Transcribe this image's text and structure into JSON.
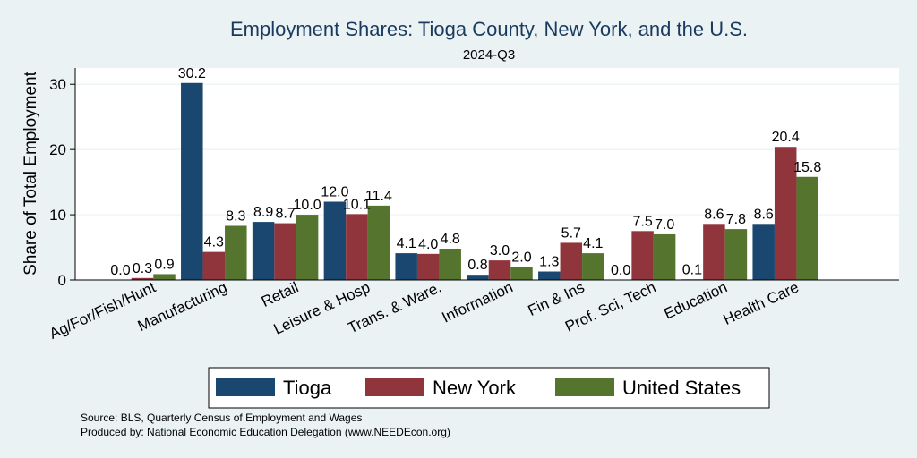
{
  "chart_data": {
    "type": "bar",
    "title": "Employment Shares: Tioga County, New York, and the U.S.",
    "subtitle": "2024-Q3",
    "ylabel": "Share of Total Employment",
    "xlabel": "",
    "ylim": [
      0,
      32.5
    ],
    "yticks": [
      "0",
      "10",
      "20",
      "30"
    ],
    "ytick_values": [
      0,
      10,
      20,
      30
    ],
    "grid": true,
    "legend_position": "bottom",
    "categories": [
      "Ag/For/Fish/Hunt",
      "Manufacturing",
      "Retail",
      "Leisure & Hosp",
      "Trans. & Ware.",
      "Information",
      "Fin & Ins",
      "Prof, Sci, Tech",
      "Education",
      "Health Care"
    ],
    "series": [
      {
        "name": "Tioga",
        "color": "#1a476f",
        "values": [
          0.0,
          30.2,
          8.9,
          12.0,
          4.1,
          0.8,
          1.3,
          0.0,
          0.1,
          8.6
        ],
        "labels": [
          "0.0",
          "30.2",
          "8.9",
          "12.0",
          "4.1",
          "0.8",
          "1.3",
          "0.0",
          "0.1",
          "8.6"
        ]
      },
      {
        "name": "New York",
        "color": "#90353b",
        "values": [
          0.3,
          4.3,
          8.7,
          10.1,
          4.0,
          3.0,
          5.7,
          7.5,
          8.6,
          20.4
        ],
        "labels": [
          "0.3",
          "4.3",
          "8.7",
          "10.1",
          "4.0",
          "3.0",
          "5.7",
          "7.5",
          "8.6",
          "20.4"
        ]
      },
      {
        "name": "United States",
        "color": "#55752f",
        "values": [
          0.9,
          8.3,
          10.0,
          11.4,
          4.8,
          2.0,
          4.1,
          7.0,
          7.8,
          15.8
        ],
        "labels": [
          "0.9",
          "8.3",
          "10.0",
          "11.4",
          "4.8",
          "2.0",
          "4.1",
          "7.0",
          "7.8",
          "15.8"
        ]
      }
    ],
    "notes": [
      "Source: BLS, Quarterly Census of Employment and Wages",
      "Produced by: National Economic Education Delegation (www.NEEDEcon.org)"
    ]
  }
}
